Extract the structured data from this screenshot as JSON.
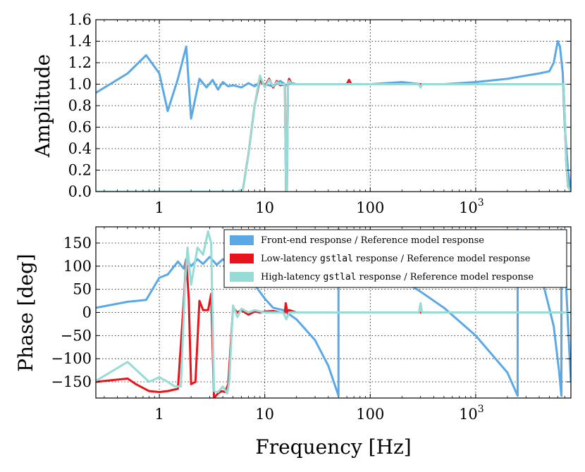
{
  "chart_data": [
    {
      "id": "amplitude",
      "type": "line",
      "xscale": "log",
      "xlim": [
        0.25,
        8000
      ],
      "ylim": [
        0,
        1.6
      ],
      "ylabel": "Amplitude",
      "xlabel": "",
      "grid": true,
      "xticks": [
        {
          "value": 1,
          "label": "1"
        },
        {
          "value": 10,
          "label": "10"
        },
        {
          "value": 100,
          "label": "100"
        },
        {
          "value": 1000,
          "label": "10",
          "sup": "3"
        }
      ],
      "yticks": [
        {
          "value": 0.0,
          "label": "0.0"
        },
        {
          "value": 0.2,
          "label": "0.2"
        },
        {
          "value": 0.4,
          "label": "0.4"
        },
        {
          "value": 0.6,
          "label": "0.6"
        },
        {
          "value": 0.8,
          "label": "0.8"
        },
        {
          "value": 1.0,
          "label": "1.0"
        },
        {
          "value": 1.2,
          "label": "1.2"
        },
        {
          "value": 1.4,
          "label": "1.4"
        },
        {
          "value": 1.6,
          "label": "1.6"
        }
      ],
      "series": [
        {
          "name": "Front-end response / Reference model response",
          "color": "#5aa9e6",
          "x": [
            0.25,
            0.5,
            0.75,
            1.0,
            1.2,
            1.5,
            1.8,
            2.0,
            2.4,
            2.8,
            3.2,
            3.6,
            4.0,
            4.5,
            5,
            6,
            7,
            8,
            9,
            10,
            12,
            14,
            16,
            18,
            20,
            30,
            50,
            100,
            200,
            300,
            500,
            1000,
            2000,
            3000,
            4000,
            5000,
            5500,
            6000,
            6300,
            6700,
            7000,
            7500,
            8000
          ],
          "y": [
            0.92,
            1.1,
            1.27,
            1.1,
            0.75,
            1.05,
            1.35,
            0.68,
            1.05,
            0.97,
            1.04,
            0.95,
            1.02,
            0.98,
            0.99,
            0.97,
            1.01,
            0.98,
            1.02,
            1.0,
            0.98,
            1.03,
            0.99,
            1.01,
            1.0,
            1.0,
            1.0,
            1.0,
            1.02,
            1.0,
            1.0,
            1.02,
            1.05,
            1.08,
            1.1,
            1.12,
            1.2,
            1.4,
            1.35,
            1.1,
            0.6,
            0.2,
            0.0
          ]
        },
        {
          "name": "Low-latency gstlal response / Reference model response",
          "color": "#e8141c",
          "x": [
            0.25,
            5.5,
            6.2,
            7,
            8,
            9,
            10,
            11,
            12,
            13,
            14,
            15.5,
            15.9,
            16.2,
            16.6,
            17,
            18,
            20,
            30,
            60,
            63,
            66,
            100,
            200,
            300,
            500,
            1000,
            3000,
            6000,
            6800,
            7000,
            7200,
            7500,
            8000
          ],
          "y": [
            0.0,
            0.0,
            0.02,
            0.35,
            0.8,
            1.05,
            0.98,
            1.05,
            0.97,
            1.03,
            0.99,
            1.0,
            0.0,
            0.0,
            1.0,
            1.05,
            1.0,
            1.0,
            1.0,
            1.0,
            1.04,
            1.0,
            1.0,
            1.0,
            1.0,
            1.0,
            1.0,
            1.0,
            1.0,
            1.0,
            0.7,
            0.3,
            0.05,
            0.0
          ]
        },
        {
          "name": "High-latency gstlal response / Reference model response",
          "color": "#96dbd5",
          "x": [
            0.25,
            5.5,
            6.2,
            7,
            8,
            9,
            10,
            11,
            12,
            13,
            14,
            15.5,
            15.9,
            16.2,
            16.6,
            17,
            18,
            20,
            30,
            100,
            290,
            300,
            310,
            1000,
            3000,
            6000,
            6800,
            7000,
            7200,
            7500,
            8000
          ],
          "y": [
            0.0,
            0.0,
            0.02,
            0.35,
            0.8,
            1.08,
            0.97,
            1.04,
            0.98,
            1.02,
            1.0,
            1.0,
            0.0,
            0.0,
            1.0,
            1.03,
            1.0,
            1.0,
            1.0,
            1.0,
            1.0,
            0.97,
            1.0,
            1.0,
            1.0,
            1.0,
            1.0,
            0.7,
            0.3,
            0.05,
            0.0
          ]
        }
      ]
    },
    {
      "id": "phase",
      "type": "line",
      "xscale": "log",
      "xlim": [
        0.25,
        8000
      ],
      "ylim": [
        -185,
        185
      ],
      "ylabel": "Phase [deg]",
      "xlabel": "Frequency [Hz]",
      "grid": true,
      "legend_position": "top-right",
      "xticks": [
        {
          "value": 1,
          "label": "1"
        },
        {
          "value": 10,
          "label": "10"
        },
        {
          "value": 100,
          "label": "100"
        },
        {
          "value": 1000,
          "label": "10",
          "sup": "3"
        }
      ],
      "yticks": [
        {
          "value": -150,
          "label": "−150"
        },
        {
          "value": -100,
          "label": "−100"
        },
        {
          "value": -50,
          "label": "−50"
        },
        {
          "value": 0,
          "label": "0"
        },
        {
          "value": 50,
          "label": "50"
        },
        {
          "value": 100,
          "label": "100"
        },
        {
          "value": 150,
          "label": "150"
        }
      ],
      "series": [
        {
          "name": "Front-end response / Reference model response",
          "legend_parts": [
            "Front-end response / Reference model response"
          ],
          "color": "#5aa9e6",
          "x": [
            0.25,
            0.5,
            0.75,
            1.0,
            1.2,
            1.5,
            1.7,
            1.8,
            2.0,
            2.3,
            2.6,
            3.0,
            3.5,
            4.0,
            4.5,
            5,
            6,
            8,
            10,
            12,
            15,
            20,
            30,
            40,
            50,
            50,
            70,
            100,
            200,
            300,
            500,
            1000,
            2000,
            2500,
            2500,
            3500,
            4500,
            5500,
            6200,
            6500,
            6500,
            7200,
            7600,
            8000
          ],
          "y": [
            10,
            23,
            27,
            75,
            82,
            110,
            95,
            115,
            100,
            115,
            105,
            120,
            103,
            115,
            105,
            110,
            95,
            60,
            30,
            10,
            5,
            -15,
            -60,
            -115,
            -180,
            180,
            150,
            120,
            70,
            45,
            10,
            -50,
            -130,
            -180,
            180,
            120,
            50,
            -30,
            -130,
            -180,
            180,
            60,
            -50,
            -150
          ]
        },
        {
          "name": "Low-latency gstlal response / Reference model response",
          "legend_parts": [
            "Low-latency ",
            "gstlal",
            " response / Reference model response"
          ],
          "color": "#e8141c",
          "x": [
            0.25,
            0.5,
            0.6,
            0.8,
            1.0,
            1.2,
            1.5,
            1.7,
            1.8,
            1.9,
            2.0,
            2.2,
            2.4,
            2.6,
            2.9,
            3.1,
            3.3,
            3.6,
            3.9,
            4.2,
            4.5,
            5,
            5.5,
            6,
            7,
            8,
            9,
            10,
            12,
            14,
            15.5,
            15.8,
            16.5,
            17,
            20,
            50,
            100,
            500,
            1000,
            5000,
            8000
          ],
          "y": [
            -150,
            -143,
            -155,
            -170,
            -172,
            -170,
            -165,
            20,
            115,
            30,
            -155,
            -150,
            25,
            5,
            5,
            40,
            -185,
            -175,
            -170,
            -172,
            -155,
            10,
            0,
            5,
            -5,
            2,
            0,
            2,
            3,
            0,
            0,
            20,
            -3,
            5,
            0,
            0,
            0,
            0,
            0,
            0,
            0
          ]
        },
        {
          "name": "High-latency gstlal response / Reference model response",
          "legend_parts": [
            "High-latency ",
            "gstlal",
            " response / Reference model response"
          ],
          "color": "#96dbd5",
          "x": [
            0.25,
            0.5,
            0.8,
            1.0,
            1.2,
            1.4,
            1.6,
            1.75,
            1.85,
            2.0,
            2.3,
            2.6,
            2.9,
            3.1,
            3.3,
            3.6,
            4.0,
            4.4,
            4.6,
            5,
            5.5,
            6,
            7,
            8,
            10,
            15,
            16,
            17,
            20,
            50,
            290,
            300,
            310,
            1000,
            8000
          ],
          "y": [
            -148,
            -107,
            -150,
            -140,
            -150,
            -160,
            -160,
            60,
            140,
            60,
            140,
            125,
            175,
            150,
            -170,
            -172,
            -160,
            -175,
            -150,
            15,
            -10,
            8,
            0,
            5,
            0,
            0,
            -15,
            0,
            0,
            0,
            0,
            20,
            0,
            0,
            0
          ]
        }
      ]
    }
  ]
}
